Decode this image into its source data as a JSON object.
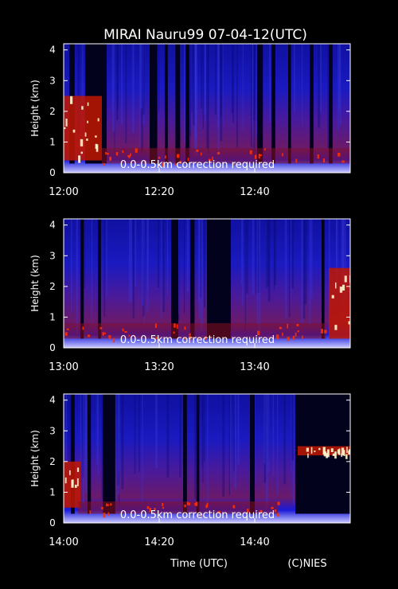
{
  "title": "MIRAI Nauru99 07-04-12(UTC)",
  "footer": {
    "xlabel": "Time (UTC)",
    "credit": "(C)NIES"
  },
  "colors": {
    "background": "#000000",
    "text": "#ffffff",
    "low_signal": "#1a1ac8",
    "mid_signal": "#8a1e5a",
    "high_signal": "#ff3000",
    "saturated": "#fff8d0"
  },
  "chart_data": [
    {
      "type": "heatmap",
      "ylabel": "Height (km)",
      "ylim": [
        0,
        4.2
      ],
      "yticks": [
        "0",
        "1",
        "2",
        "3",
        "4"
      ],
      "xticks": [
        "12:00",
        "12:20",
        "12:40"
      ],
      "xlim_minutes": [
        0,
        60
      ],
      "annotation": "0.0-0.5km correction required",
      "gaps_minutes": [
        [
          1.2,
          2.3
        ],
        [
          4.5,
          9.0
        ],
        [
          18.0,
          19.6
        ],
        [
          21.2,
          21.8
        ],
        [
          23.4,
          24.4
        ],
        [
          25.5,
          26.3
        ],
        [
          40.5,
          41.7
        ],
        [
          43.5,
          44.3
        ],
        [
          47.0,
          47.6
        ],
        [
          51.5,
          52.3
        ],
        [
          55.5,
          56.3
        ]
      ],
      "cloud_layers": [
        {
          "start": 0,
          "end": 8,
          "bottom": 0.4,
          "top": 2.5,
          "strength": "high"
        },
        {
          "start": 8,
          "end": 60,
          "bottom": 0.3,
          "top": 0.8,
          "strength": "mid"
        }
      ]
    },
    {
      "type": "heatmap",
      "ylabel": "Height (km)",
      "ylim": [
        0,
        4.2
      ],
      "yticks": [
        "0",
        "1",
        "2",
        "3",
        "4"
      ],
      "xticks": [
        "13:00",
        "13:20",
        "13:40"
      ],
      "xlim_minutes": [
        0,
        60
      ],
      "annotation": "0.0-0.5km correction required",
      "gaps_minutes": [
        [
          3.5,
          4.2
        ],
        [
          7.2,
          7.8
        ],
        [
          22.5,
          24.0
        ],
        [
          26.5,
          27.4
        ],
        [
          30.0,
          35.0
        ],
        [
          54.0,
          54.6
        ]
      ],
      "cloud_layers": [
        {
          "start": 0,
          "end": 55,
          "bottom": 0.3,
          "top": 0.8,
          "strength": "mid"
        },
        {
          "start": 55.5,
          "end": 60,
          "bottom": 0.3,
          "top": 2.6,
          "strength": "high"
        }
      ]
    },
    {
      "type": "heatmap",
      "ylabel": "Height (km)",
      "ylim": [
        0,
        4.2
      ],
      "yticks": [
        "0",
        "1",
        "2",
        "3",
        "4"
      ],
      "xticks": [
        "14:00",
        "14:20",
        "14:40"
      ],
      "xlim_minutes": [
        0,
        60
      ],
      "annotation": "0.0-0.5km correction required",
      "gaps_minutes": [
        [
          1.5,
          2.3
        ],
        [
          5.0,
          5.7
        ],
        [
          8.2,
          10.8
        ],
        [
          25.0,
          25.8
        ],
        [
          27.8,
          28.4
        ],
        [
          39.0,
          40.0
        ],
        [
          48.5,
          60.0
        ]
      ],
      "cloud_layers": [
        {
          "start": 0,
          "end": 3.5,
          "bottom": 0.5,
          "top": 2.0,
          "strength": "high"
        },
        {
          "start": 3,
          "end": 45,
          "bottom": 0.3,
          "top": 0.7,
          "strength": "mid"
        },
        {
          "start": 49,
          "end": 60,
          "bottom": 2.2,
          "top": 2.5,
          "strength": "high"
        }
      ]
    }
  ]
}
